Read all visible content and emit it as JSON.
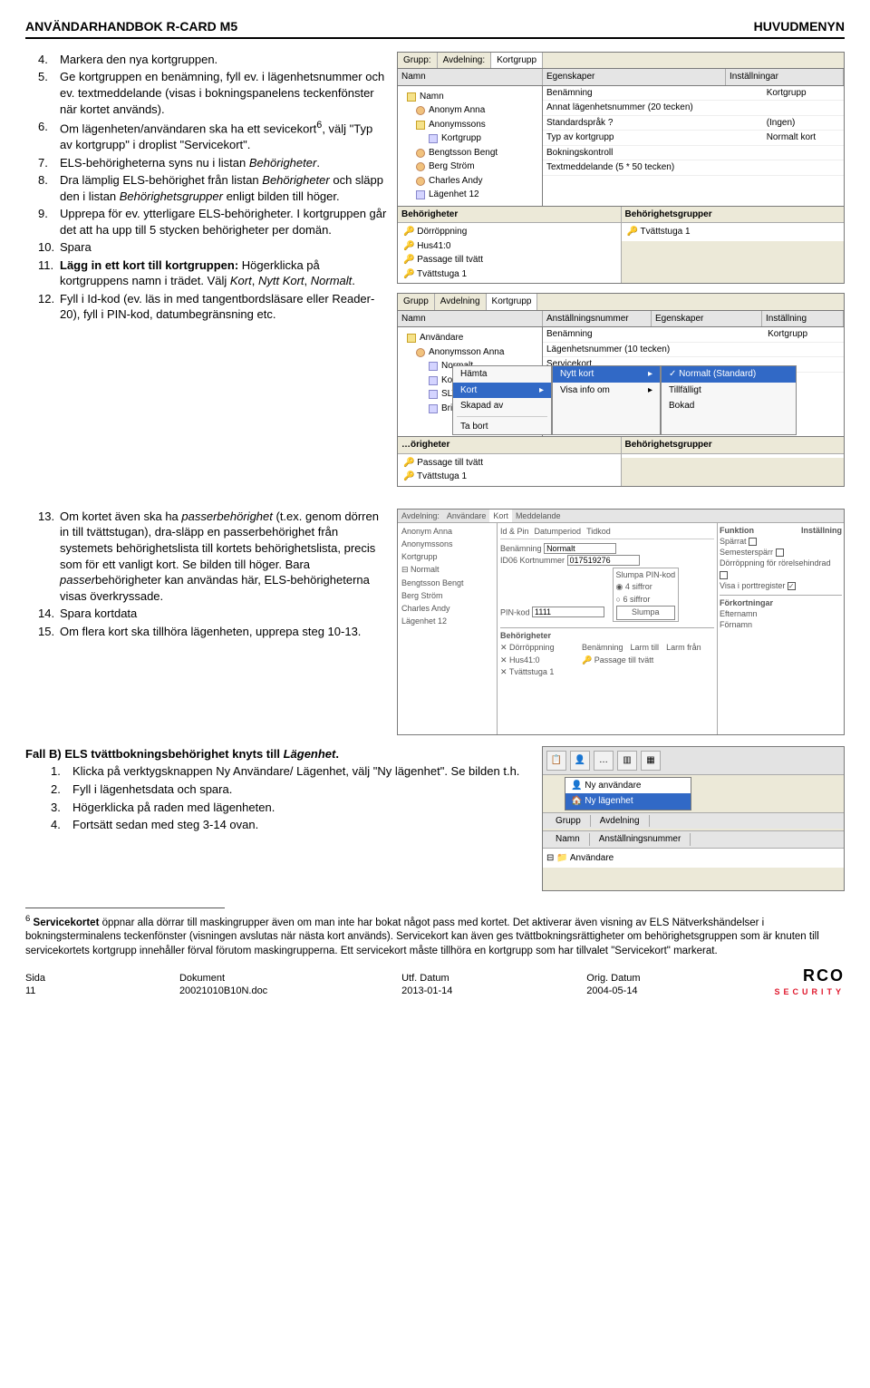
{
  "header": {
    "left": "ANVÄNDARHANDBOK R-CARD M5",
    "right": "HUVUDMENYN"
  },
  "steps_a": [
    {
      "n": "4.",
      "t": "Markera den nya kortgruppen."
    },
    {
      "n": "5.",
      "t": "Ge kortgruppen en benämning, fyll ev. i lägenhetsnummer och ev. textmeddelande (visas i bokningspanelens teckenfönster när kortet används)."
    },
    {
      "n": "6.",
      "t": "Om lägenheten/användaren ska ha ett sevicekort",
      "sup": "6",
      "t2": ", välj \"Typ av kortgrupp\" i droplist \"Servicekort\"."
    },
    {
      "n": "7.",
      "t": "ELS-behörigheterna syns nu i listan ",
      "i": "Behörigheter",
      "t2": "."
    },
    {
      "n": "8.",
      "t": "Dra lämplig ELS-behörighet från listan ",
      "i": "Behörigheter",
      "t2": " och släpp den i listan ",
      "i2": "Behörighetsgrupper",
      "t3": " enligt bilden till höger."
    },
    {
      "n": "9.",
      "t": "Upprepa för ev. ytterligare ELS-behörigheter. I kortgruppen går det att ha upp till 5 stycken behörigheter per domän."
    },
    {
      "n": "10.",
      "t": "Spara"
    },
    {
      "n": "11.",
      "b": "Lägg in ett kort till kortgruppen:",
      "t": " Högerklicka på kortgruppens namn i trädet. Välj ",
      "i": "Kort",
      "t2": ", ",
      "i2": "Nytt Kort",
      "t3": ", ",
      "i3": "Normalt",
      "t4": "."
    },
    {
      "n": "12.",
      "t": "Fyll i Id-kod (ev. läs in med tangentbordsläsare eller Reader-20), fyll i PIN-kod, datumbegränsning etc."
    }
  ],
  "steps_b": [
    {
      "n": "13.",
      "t": "Om kortet även ska ha ",
      "i": "passerbehörighet",
      "t2": " (t.ex. genom dörren in till tvättstugan), dra-släpp en passerbehörighet från systemets behörighetslista till kortets behörighetslista, precis som för ett vanligt kort. Se bilden till höger. Bara ",
      "i2": "passer",
      "t3": "behörigheter kan användas här, ELS-behörigheterna visas överkryssade."
    },
    {
      "n": "14.",
      "t": "Spara kortdata"
    },
    {
      "n": "15.",
      "t": "Om flera kort ska tillhöra lägenheten, upprepa steg 10-13."
    }
  ],
  "fallb_title": "Fall B) ELS tvättbokningsbehörighet knyts till ",
  "fallb_title_i": "Lägenhet",
  "fallb_steps": [
    {
      "n": "1.",
      "t": "Klicka på verktygsknappen Ny Användare/ Lägenhet, välj \"Ny lägenhet\". Se bilden t.h."
    },
    {
      "n": "2.",
      "t": "Fyll i lägenhetsdata och spara."
    },
    {
      "n": "3.",
      "t": "Högerklicka på raden med lägenheten."
    },
    {
      "n": "4.",
      "t": "Fortsätt sedan med steg 3-14 ovan."
    }
  ],
  "ui1": {
    "tabs": [
      "Grupp:",
      "Avdelning:",
      "Kortgrupp"
    ],
    "cols": [
      "Namn",
      "Egenskaper",
      "Inställningar"
    ],
    "tree": [
      {
        "lvl": 0,
        "icon": "folder",
        "label": "Namn"
      },
      {
        "lvl": 1,
        "icon": "person",
        "label": "Anonym Anna"
      },
      {
        "lvl": 1,
        "icon": "folder",
        "label": "Anonymssons"
      },
      {
        "lvl": 2,
        "icon": "box",
        "label": "Kortgrupp"
      },
      {
        "lvl": 1,
        "icon": "person",
        "label": "Bengtsson Bengt"
      },
      {
        "lvl": 1,
        "icon": "person",
        "label": "Berg Ström"
      },
      {
        "lvl": 1,
        "icon": "person",
        "label": "Charles Andy"
      },
      {
        "lvl": 1,
        "icon": "box",
        "label": "Lägenhet 12"
      }
    ],
    "kv": [
      [
        "Benämning",
        "Kortgrupp"
      ],
      [
        "Annat lägenhetsnummer (20 tecken)",
        ""
      ],
      [
        "Standardspråk ?",
        "(Ingen)"
      ],
      [
        "Typ av kortgrupp",
        "Normalt kort"
      ],
      [
        "Bokningskontroll",
        ""
      ],
      [
        "Textmeddelande (5 * 50 tecken)",
        ""
      ]
    ],
    "sub_title": "Behörigheter",
    "sub_left": [
      "Dörröppning",
      "Hus41:0",
      "Passage till tvätt",
      "Tvättstuga 1"
    ],
    "sub_right_title": "Behörighetsgrupper",
    "sub_right": [
      "Tvättstuga 1"
    ]
  },
  "ui2": {
    "tabs": [
      "Grupp",
      "Avdelning",
      "Kortgrupp"
    ],
    "cols": [
      "Namn",
      "Anställningsnummer",
      "Egenskaper",
      "Inställning"
    ],
    "tree": [
      {
        "lvl": 0,
        "icon": "folder",
        "label": "Användare"
      },
      {
        "lvl": 1,
        "icon": "person",
        "label": "Anonymsson Anna"
      },
      {
        "lvl": 2,
        "icon": "box",
        "label": "Normalt"
      },
      {
        "lvl": 2,
        "icon": "box",
        "label": "Kortgr…"
      },
      {
        "lvl": 2,
        "icon": "box",
        "label": "SLV 2:1"
      },
      {
        "lvl": 2,
        "icon": "box",
        "label": "Bris"
      }
    ],
    "kv": [
      [
        "Benämning",
        "Kortgrupp"
      ],
      [
        "Lägenhetsnummer (10 tecken)",
        ""
      ],
      [
        "Servicekort",
        ""
      ]
    ],
    "ctx_left": [
      {
        "label": "Hämta"
      },
      {
        "label": "Kort",
        "hl": true,
        "arrow": true
      },
      {
        "label": "Skapad av"
      },
      {
        "sep": true
      },
      {
        "label": "Ta bort"
      }
    ],
    "ctx_mid": [
      {
        "label": "Nytt kort",
        "hl": true,
        "arrow": true
      },
      {
        "label": "Visa info om",
        "arrow": true
      }
    ],
    "ctx_right": [
      {
        "label": "Normalt (Standard)",
        "hl": true,
        "check": true
      },
      {
        "label": "Tillfälligt"
      },
      {
        "label": "Bokad"
      }
    ],
    "bottom_left_title": "…örigheter",
    "bottom_left": [
      "Passage till tvätt",
      "Tvättstuga 1"
    ],
    "bottom_right_title": "Behörighetsgrupper"
  },
  "ui3": {
    "top_tabs": [
      "Avdelning:",
      "Användare",
      "Kort",
      "Meddelande"
    ],
    "tree": [
      "Anonym Anna",
      "Anonymssons",
      "Kortgrupp",
      "⊟ Normalt",
      "Bengtsson Bengt",
      "Berg Ström",
      "Charles Andy",
      "Lägenhet 12"
    ],
    "rows": [
      [
        "Id & Pin",
        "Datumperiod",
        "Tidkod"
      ],
      [
        "Benämning",
        "Normalt"
      ],
      [
        "ID06 Kortnummer",
        "017519276"
      ],
      [
        "PIN-kod",
        "1111"
      ]
    ],
    "slump_title": "Slumpa PIN-kod",
    "slump_rows": [
      "4 siffror",
      "6 siffror",
      "Slumpa"
    ],
    "right_title": "Funktion",
    "right_title2": "Inställning",
    "right_rows": [
      "Spärrat",
      "Semesterspärr",
      "Dörröppning för rörelsehindrad",
      "Visa i porttregister"
    ],
    "fort_title": "Förkortningar",
    "fort_rows": [
      "Efternamn",
      "Förnamn"
    ],
    "beh_title": "Behörigheter",
    "beh_cols": [
      "Benämning",
      "Larm till",
      "Larm från"
    ],
    "beh_rows": [
      "Dörröppning",
      "Hus41:0",
      "Tvättstuga 1"
    ],
    "beh_aside": "Passage till tvätt"
  },
  "ui4": {
    "popup": [
      "Ny användare",
      "Ny lägenhet"
    ],
    "cols": [
      "Grupp",
      "Avdelning"
    ],
    "cols2": [
      "Namn",
      "Anställningsnummer"
    ],
    "tree_root": "Användare"
  },
  "footnote_lead": "6",
  "footnote_bold": "Servicekortet",
  "footnote_text": " öppnar alla dörrar till maskingrupper även om man inte har bokat något pass med kortet. Det aktiverar även visning av ELS Nätverkshändelser i bokningsterminalens teckenfönster (visningen avslutas när nästa kort används). Servicekort kan även ges tvättbokningsrättigheter om behörighetsgruppen som är knuten till servicekortets kortgrupp innehåller förval förutom maskingrupperna. Ett servicekort måste tillhöra en kortgrupp som har tillvalet \"Servicekort\" markerat.",
  "footer": {
    "c1": [
      "Sida",
      "11"
    ],
    "c2": [
      "Dokument",
      "20021010B10N.doc"
    ],
    "c3": [
      "Utf. Datum",
      "2013-01-14"
    ],
    "c4": [
      "Orig. Datum",
      "2004-05-14"
    ],
    "logo": "RCO",
    "logo_sub": "SECURITY"
  }
}
